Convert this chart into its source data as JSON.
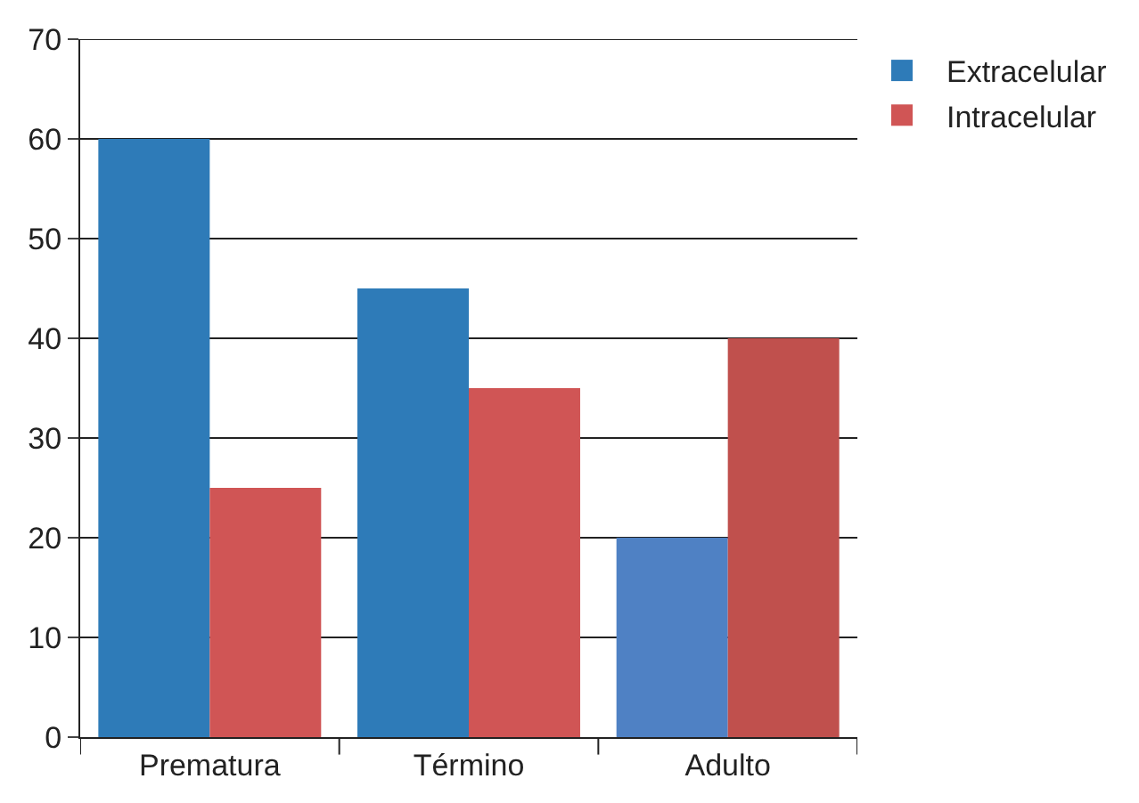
{
  "chart_data": {
    "type": "bar",
    "categories": [
      "Prematura",
      "Término",
      "Adulto"
    ],
    "series": [
      {
        "name": "Extracelular",
        "colors": [
          "#2e7bb8",
          "#2e7bb8",
          "#4f81c4"
        ],
        "values": [
          60,
          45,
          20
        ]
      },
      {
        "name": "Intracelular",
        "colors": [
          "#d05555",
          "#d05555",
          "#c0504d"
        ],
        "values": [
          25,
          35,
          40
        ]
      }
    ],
    "ylim": [
      0,
      70
    ],
    "yticks": [
      0,
      10,
      20,
      30,
      40,
      50,
      60,
      70
    ],
    "grid": "y",
    "legend": "top right"
  }
}
